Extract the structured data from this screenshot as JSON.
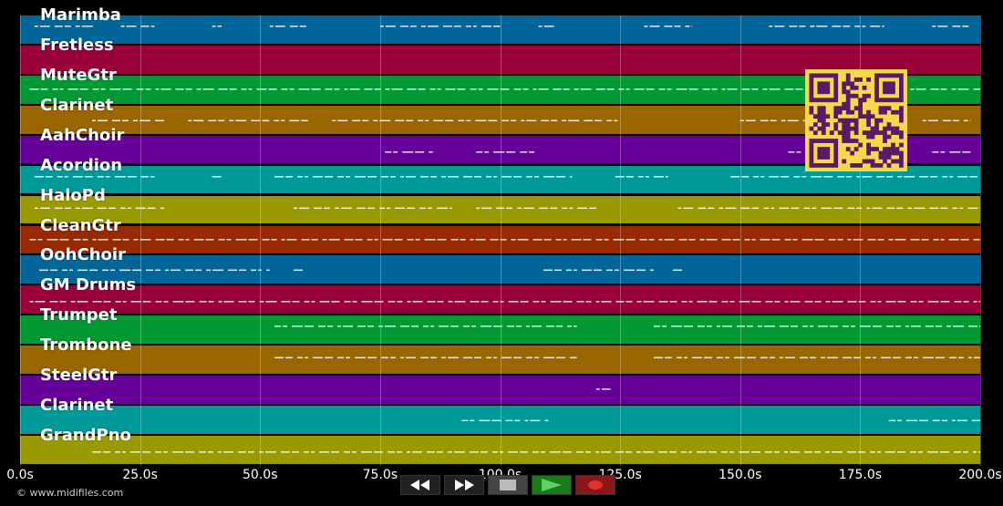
{
  "timeline": {
    "tick_labels": [
      "0.0s",
      "25.0s",
      "50.0s",
      "75.0s",
      "100.0s",
      "125.0s",
      "150.0s",
      "175.0s",
      "200.0s"
    ],
    "tick_values": [
      0,
      25,
      50,
      75,
      100,
      125,
      150,
      175,
      200
    ],
    "max_time": 200.0
  },
  "tracks": [
    {
      "name": "Marimba",
      "color": "#006699"
    },
    {
      "name": "Fretless",
      "color": "#99003a"
    },
    {
      "name": "MuteGtr",
      "color": "#009933"
    },
    {
      "name": "Clarinet",
      "color": "#996600"
    },
    {
      "name": "AahChoir",
      "color": "#660099"
    },
    {
      "name": "Acordion",
      "color": "#009999"
    },
    {
      "name": "HaloPd",
      "color": "#999900"
    },
    {
      "name": "CleanGtr",
      "color": "#992900"
    },
    {
      "name": "OohChoir",
      "color": "#006699"
    },
    {
      "name": "GM Drums",
      "color": "#99003a"
    },
    {
      "name": "Trumpet",
      "color": "#009933"
    },
    {
      "name": "Trombone",
      "color": "#996600"
    },
    {
      "name": "SteelGtr",
      "color": "#660099"
    },
    {
      "name": "Clarinet",
      "color": "#009999"
    },
    {
      "name": "GrandPno",
      "color": "#999900"
    }
  ],
  "note_segments": [
    [
      [
        3,
        16
      ],
      [
        21,
        28
      ],
      [
        40,
        42
      ],
      [
        52,
        60
      ],
      [
        75,
        100
      ],
      [
        108,
        112
      ],
      [
        130,
        140
      ],
      [
        156,
        180
      ],
      [
        190,
        198
      ]
    ],
    [],
    [
      [
        2,
        200
      ]
    ],
    [
      [
        15,
        30
      ],
      [
        35,
        60
      ],
      [
        65,
        125
      ],
      [
        150,
        180
      ],
      [
        188,
        198
      ]
    ],
    [
      [
        76,
        86
      ],
      [
        95,
        108
      ],
      [
        160,
        168
      ],
      [
        175,
        180
      ],
      [
        190,
        198
      ]
    ],
    [
      [
        3,
        28
      ],
      [
        40,
        42
      ],
      [
        53,
        115
      ],
      [
        124,
        135
      ],
      [
        148,
        200
      ]
    ],
    [
      [
        3,
        30
      ],
      [
        57,
        90
      ],
      [
        95,
        120
      ],
      [
        137,
        200
      ]
    ],
    [
      [
        2,
        200
      ]
    ],
    [
      [
        4,
        52
      ],
      [
        57,
        59
      ],
      [
        109,
        132
      ],
      [
        136,
        138
      ]
    ],
    [
      [
        2,
        200
      ]
    ],
    [
      [
        53,
        116
      ],
      [
        132,
        200
      ]
    ],
    [
      [
        53,
        116
      ],
      [
        132,
        200
      ]
    ],
    [
      [
        120,
        123
      ]
    ],
    [
      [
        92,
        110
      ],
      [
        181,
        200
      ]
    ],
    [
      [
        15,
        200
      ]
    ]
  ],
  "copyright": "© www.midifiles.com",
  "transport": {
    "buttons": [
      "rewind",
      "fast-forward",
      "stop",
      "play",
      "record"
    ]
  },
  "colors": {
    "background": "#000000",
    "qr_yellow": "#f6d84a",
    "qr_dark": "#5a1a6a"
  }
}
